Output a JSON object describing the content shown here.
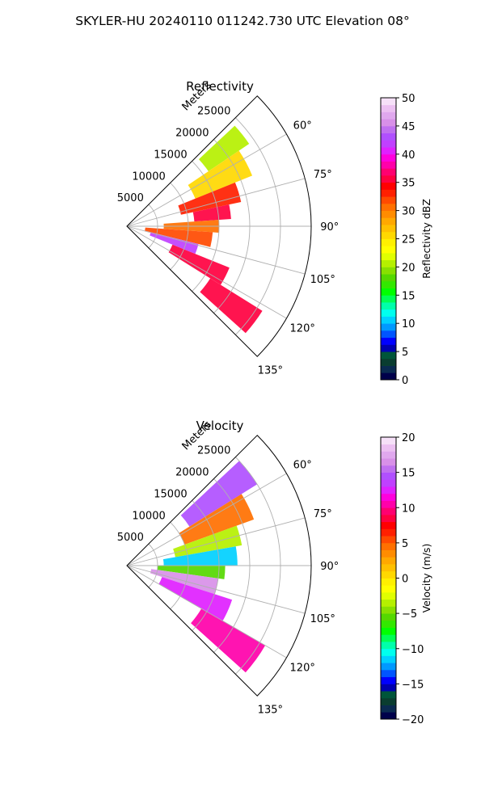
{
  "figure": {
    "title": "SKYLER-HU  20240110  011242.730 UTC Elevation 08°"
  },
  "chart_data": [
    {
      "type": "heatmap",
      "projection": "polar-sector",
      "title": "Reflectivity",
      "radial_label": "Meters",
      "radial_ticks": [
        "5000",
        "10000",
        "15000",
        "20000",
        "25000"
      ],
      "radial_tick_values": [
        5000,
        10000,
        15000,
        20000,
        25000
      ],
      "rmax": 30000,
      "angle_ticks": [
        "60°",
        "75°",
        "90°",
        "105°",
        "120°",
        "135°"
      ],
      "angle_tick_values": [
        60,
        75,
        90,
        105,
        120,
        135
      ],
      "theta_range": [
        45,
        135
      ],
      "grid": true,
      "colorbar": {
        "label": "Reflectivity dBZ",
        "ticks": [
          "0",
          "5",
          "10",
          "15",
          "20",
          "25",
          "30",
          "35",
          "40",
          "45",
          "50"
        ],
        "range": [
          0,
          50
        ],
        "colors": [
          "#00004a",
          "#0a2a50",
          "#0a3d30",
          "#00553a",
          "#0000b0",
          "#0000ff",
          "#0055ff",
          "#0099ff",
          "#00d0ff",
          "#00ffee",
          "#00ffaa",
          "#00ff55",
          "#00ff00",
          "#33e800",
          "#55d800",
          "#88e000",
          "#b5f000",
          "#e0ff00",
          "#ffff00",
          "#fff000",
          "#ffd800",
          "#ffc000",
          "#ffa800",
          "#ff8c00",
          "#ff7000",
          "#ff4a00",
          "#ff2000",
          "#ff0000",
          "#ff0040",
          "#ff0070",
          "#ff00aa",
          "#ff00dd",
          "#e020ff",
          "#c040ff",
          "#b050ff",
          "#c070f0",
          "#d890e8",
          "#e0a8ee",
          "#ecc0f2",
          "#f6e0f8"
        ]
      },
      "cells": [
        {
          "theta_range": [
            47,
            56
          ],
          "r_range": [
            16000,
            24000
          ],
          "value": 21
        },
        {
          "theta_range": [
            56,
            68
          ],
          "r_range": [
            12000,
            22000
          ],
          "value": 25
        },
        {
          "theta_range": [
            68,
            78
          ],
          "r_range": [
            9000,
            19000
          ],
          "value": 33
        },
        {
          "theta_range": [
            78,
            86
          ],
          "r_range": [
            11000,
            17000
          ],
          "value": 36
        },
        {
          "theta_range": [
            86,
            94
          ],
          "r_range": [
            6000,
            15000
          ],
          "value": 30
        },
        {
          "theta_range": [
            94,
            104
          ],
          "r_range": [
            3000,
            14000
          ],
          "value": 32
        },
        {
          "theta_range": [
            104,
            112
          ],
          "r_range": [
            4000,
            12000
          ],
          "value": 42
        },
        {
          "theta_range": [
            112,
            122
          ],
          "r_range": [
            8000,
            18000
          ],
          "value": 36
        },
        {
          "theta_range": [
            122,
            132
          ],
          "r_range": [
            16000,
            26000
          ],
          "value": 35
        }
      ]
    },
    {
      "type": "heatmap",
      "projection": "polar-sector",
      "title": "Velocity",
      "radial_label": "Meters",
      "radial_ticks": [
        "5000",
        "10000",
        "15000",
        "20000",
        "25000"
      ],
      "radial_tick_values": [
        5000,
        10000,
        15000,
        20000,
        25000
      ],
      "rmax": 30000,
      "angle_ticks": [
        "60°",
        "75°",
        "90°",
        "105°",
        "120°",
        "135°"
      ],
      "angle_tick_values": [
        60,
        75,
        90,
        105,
        120,
        135
      ],
      "theta_range": [
        45,
        135
      ],
      "grid": true,
      "colorbar": {
        "label": "Velocity (m/s)",
        "ticks": [
          "−20",
          "−15",
          "−10",
          "−5",
          "0",
          "5",
          "10",
          "15",
          "20"
        ],
        "range": [
          -20,
          20
        ],
        "colors": [
          "#00004a",
          "#0a2a50",
          "#0a3d30",
          "#00553a",
          "#0000b0",
          "#0000ff",
          "#0055ff",
          "#0099ff",
          "#00d0ff",
          "#00ffee",
          "#00ffaa",
          "#00ff55",
          "#00ff00",
          "#33e800",
          "#55d800",
          "#88e000",
          "#b5f000",
          "#e0ff00",
          "#ffff00",
          "#fff000",
          "#ffd800",
          "#ffc000",
          "#ffa800",
          "#ff8c00",
          "#ff7000",
          "#ff4a00",
          "#ff2000",
          "#ff0000",
          "#ff0040",
          "#ff0070",
          "#ff00aa",
          "#ff00dd",
          "#e020ff",
          "#c040ff",
          "#b050ff",
          "#c070f0",
          "#d890e8",
          "#e0a8ee",
          "#ecc0f2",
          "#f6e0f8"
        ]
      },
      "cells": [
        {
          "theta_range": [
            47,
            58
          ],
          "r_range": [
            12000,
            25000
          ],
          "value": 14
        },
        {
          "theta_range": [
            58,
            70
          ],
          "r_range": [
            10000,
            22000
          ],
          "value": 4
        },
        {
          "theta_range": [
            70,
            80
          ],
          "r_range": [
            8000,
            19000
          ],
          "value": -4
        },
        {
          "theta_range": [
            80,
            90
          ],
          "r_range": [
            6000,
            18000
          ],
          "value": -12
        },
        {
          "theta_range": [
            90,
            98
          ],
          "r_range": [
            5000,
            16000
          ],
          "value": -6
        },
        {
          "theta_range": [
            98,
            108
          ],
          "r_range": [
            4000,
            15000
          ],
          "value": 16
        },
        {
          "theta_range": [
            108,
            120
          ],
          "r_range": [
            6000,
            18000
          ],
          "value": 12
        },
        {
          "theta_range": [
            120,
            132
          ],
          "r_range": [
            14000,
            26000
          ],
          "value": 10
        }
      ]
    }
  ]
}
